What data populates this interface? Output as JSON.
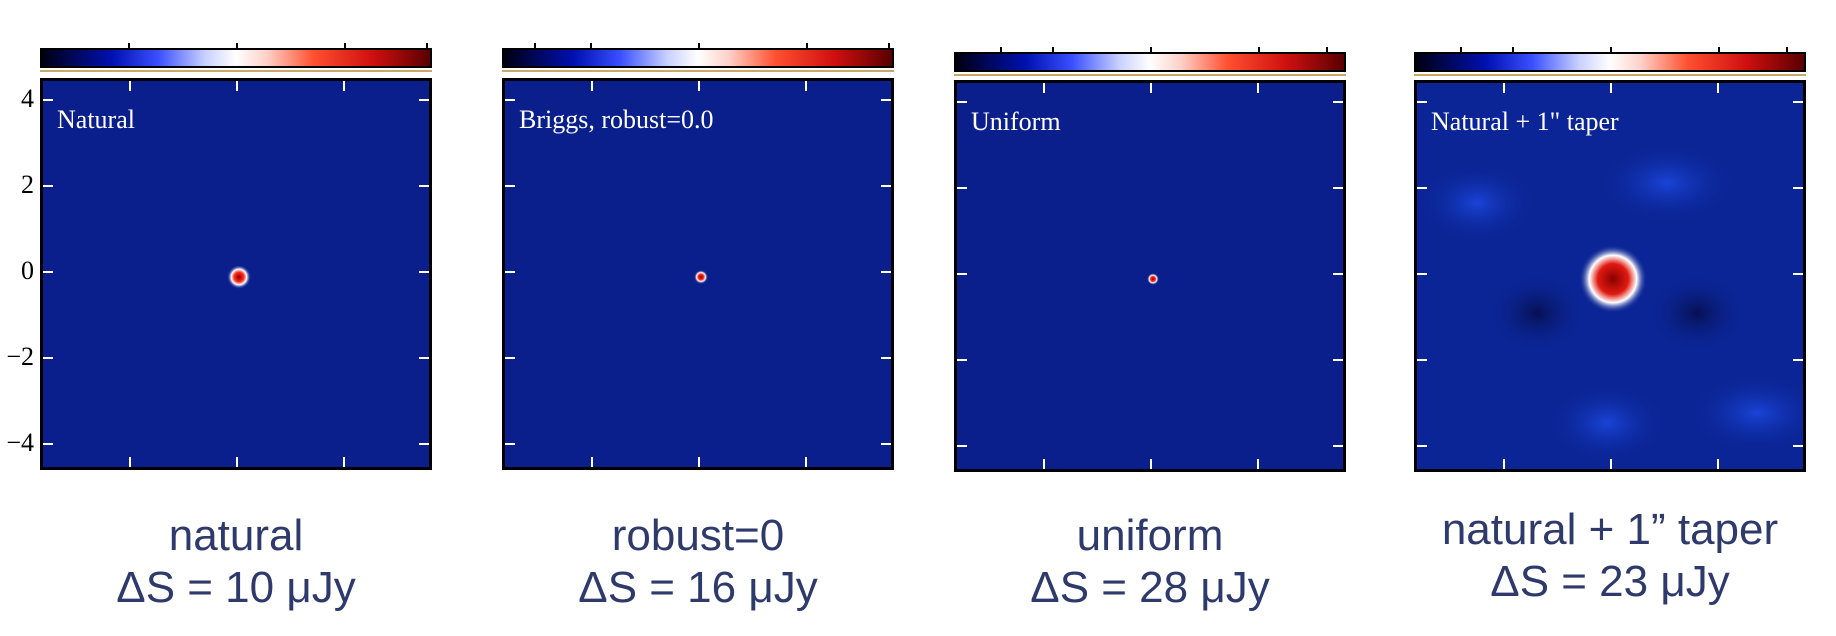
{
  "y_axis": {
    "ticks": [
      "4",
      "2",
      "0",
      "−2",
      "−4"
    ]
  },
  "panels": [
    {
      "map_label": "Natural",
      "caption_name": "natural",
      "caption_noise": "ΔS = 10 μJy",
      "source_size": "small"
    },
    {
      "map_label": "Briggs, robust=0.0",
      "caption_name": "robust=0",
      "caption_noise": "ΔS = 16 μJy",
      "source_size": "tiny"
    },
    {
      "map_label": "Uniform",
      "caption_name": "uniform",
      "caption_noise": "ΔS = 28 μJy",
      "source_size": "tiny"
    },
    {
      "map_label": "Natural + 1\" taper",
      "caption_name": "natural + 1” taper",
      "caption_noise": "ΔS = 23 μJy",
      "source_size": "large"
    }
  ],
  "colors": {
    "map_background": "#0a1f8c",
    "caption_text": "#2d3a6b"
  }
}
